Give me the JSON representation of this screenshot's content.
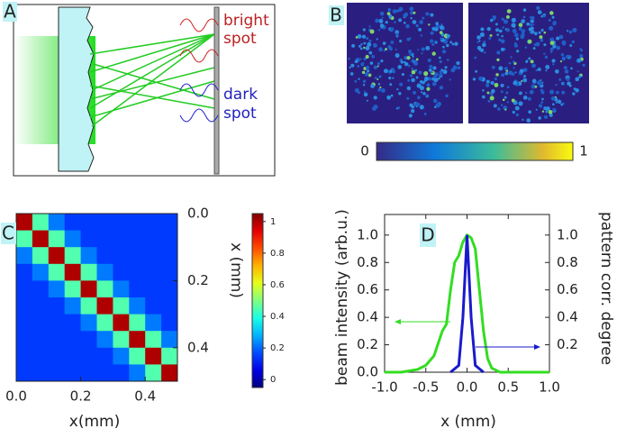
{
  "panel_labels": [
    "A",
    "B",
    "C",
    "D"
  ],
  "diagram": {
    "bright_spot": [
      "bright",
      "spot"
    ],
    "dark_spot": [
      "dark",
      "spot"
    ]
  },
  "speckle_colorbar": {
    "ticks": [
      0,
      1
    ]
  },
  "chart_data": [
    {
      "type": "heatmap",
      "xlabel": "x(mm)",
      "ylabel": "x (mm)",
      "xlim": [
        0,
        0.5
      ],
      "ylim": [
        0,
        0.5
      ],
      "xticks": [
        {
          "value": 0,
          "label": "0.0"
        },
        {
          "value": 0.2,
          "label": "0.2"
        },
        {
          "value": 0.4,
          "label": "0.4"
        }
      ],
      "yticks": [
        {
          "value": 0,
          "label": "0.0"
        },
        {
          "value": 0.2,
          "label": "0.2"
        },
        {
          "value": 0.4,
          "label": "0.4"
        }
      ],
      "clim": [
        -0.05,
        1.05
      ],
      "cticks": [
        0,
        0.2,
        0.4,
        0.6,
        0.8,
        1
      ],
      "z": [
        [
          1.0,
          0.45,
          0.22,
          0.15,
          0.15,
          0.15,
          0.15,
          0.15,
          0.15,
          0.15
        ],
        [
          0.45,
          1.0,
          0.45,
          0.22,
          0.15,
          0.15,
          0.15,
          0.15,
          0.15,
          0.15
        ],
        [
          0.22,
          0.45,
          1.0,
          0.45,
          0.22,
          0.15,
          0.15,
          0.15,
          0.15,
          0.15
        ],
        [
          0.15,
          0.22,
          0.45,
          1.0,
          0.45,
          0.22,
          0.15,
          0.15,
          0.15,
          0.15
        ],
        [
          0.15,
          0.15,
          0.22,
          0.45,
          1.0,
          0.45,
          0.22,
          0.15,
          0.15,
          0.15
        ],
        [
          0.15,
          0.15,
          0.15,
          0.22,
          0.45,
          1.0,
          0.45,
          0.22,
          0.15,
          0.15
        ],
        [
          0.15,
          0.15,
          0.15,
          0.15,
          0.22,
          0.45,
          1.0,
          0.45,
          0.22,
          0.15
        ],
        [
          0.15,
          0.15,
          0.15,
          0.15,
          0.15,
          0.22,
          0.45,
          1.0,
          0.45,
          0.22
        ],
        [
          0.15,
          0.15,
          0.15,
          0.15,
          0.15,
          0.15,
          0.22,
          0.45,
          1.0,
          0.45
        ],
        [
          0.15,
          0.15,
          0.15,
          0.15,
          0.15,
          0.15,
          0.15,
          0.22,
          0.45,
          1.0
        ]
      ]
    },
    {
      "type": "line",
      "xlabel": "x (mm)",
      "ylabel": "beam intensity (arb.u.)",
      "y2label": "pattern corr. degree",
      "xlim": [
        -1,
        1
      ],
      "ylim": [
        0,
        1.15
      ],
      "y2lim": [
        0,
        1.15
      ],
      "xticks": [
        {
          "value": -1,
          "label": "-1.0"
        },
        {
          "value": -0.5,
          "label": "-0.5"
        },
        {
          "value": 0,
          "label": "0.0"
        },
        {
          "value": 0.5,
          "label": "0.5"
        },
        {
          "value": 1,
          "label": "1.0"
        }
      ],
      "yticks": [
        {
          "value": 0,
          "label": "0.0"
        },
        0.2,
        0.4,
        0.6,
        0.8,
        {
          "value": 1,
          "label": "1.0"
        }
      ],
      "y2ticks": [
        0.2,
        0.4,
        0.6,
        0.8,
        {
          "value": 1,
          "label": "1.0"
        }
      ],
      "series": [
        {
          "color": "#33dd22",
          "x": [
            -1,
            -0.8,
            -0.6,
            -0.5,
            -0.4,
            -0.3,
            -0.25,
            -0.2,
            -0.15,
            -0.1,
            -0.05,
            0,
            0.05,
            0.1,
            0.15,
            0.2,
            0.25,
            0.3,
            0.4,
            1
          ],
          "values": [
            0,
            0,
            0.02,
            0.05,
            0.12,
            0.3,
            0.35,
            0.6,
            0.8,
            0.85,
            0.95,
            1.0,
            0.98,
            0.9,
            0.6,
            0.3,
            0.1,
            0.03,
            0,
            0
          ]
        },
        {
          "color": "#1a1acc",
          "axis": "y2",
          "x": [
            -0.2,
            -0.1,
            -0.05,
            0,
            0.05,
            0.1,
            0.2
          ],
          "values": [
            0,
            0.05,
            0.4,
            1.0,
            0.4,
            0.05,
            0
          ]
        }
      ]
    }
  ]
}
